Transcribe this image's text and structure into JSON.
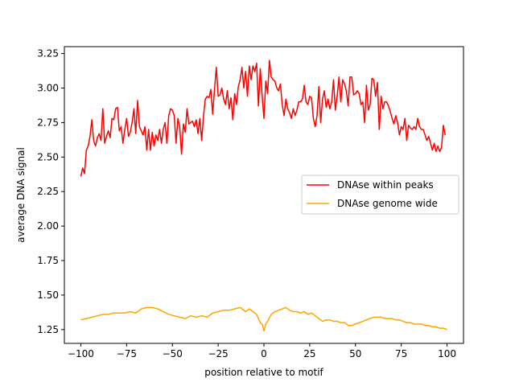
{
  "chart_data": {
    "type": "line",
    "title": "",
    "xlabel": "position relative to motif",
    "ylabel": "average DNA signal",
    "xlim": [
      -109,
      109
    ],
    "ylim": [
      1.15,
      3.3
    ],
    "xticks": [
      -100,
      -75,
      -50,
      -25,
      0,
      25,
      50,
      75,
      100
    ],
    "yticks": [
      1.25,
      1.5,
      1.75,
      2.0,
      2.25,
      2.5,
      2.75,
      3.0,
      3.25
    ],
    "xtick_labels": [
      "−100",
      "−75",
      "−50",
      "−25",
      "0",
      "25",
      "50",
      "75",
      "100"
    ],
    "ytick_labels": [
      "1.25",
      "1.50",
      "1.75",
      "2.00",
      "2.25",
      "2.50",
      "2.75",
      "3.00",
      "3.25"
    ],
    "grid": false,
    "legend_position": "center-right",
    "series": [
      {
        "name": "DNAse within peaks",
        "color": "#ff0000",
        "points": [
          [
            -100,
            2.36
          ],
          [
            -99,
            2.42
          ],
          [
            -98,
            2.38
          ],
          [
            -97,
            2.55
          ],
          [
            -96,
            2.58
          ],
          [
            -95,
            2.65
          ],
          [
            -94,
            2.77
          ],
          [
            -93,
            2.62
          ],
          [
            -92,
            2.58
          ],
          [
            -91,
            2.64
          ],
          [
            -90,
            2.67
          ],
          [
            -89,
            2.62
          ],
          [
            -88,
            2.85
          ],
          [
            -87,
            2.6
          ],
          [
            -86,
            2.65
          ],
          [
            -85,
            2.69
          ],
          [
            -84,
            2.64
          ],
          [
            -83,
            2.78
          ],
          [
            -82,
            2.77
          ],
          [
            -81,
            2.85
          ],
          [
            -80,
            2.86
          ],
          [
            -79,
            2.69
          ],
          [
            -78,
            2.72
          ],
          [
            -77,
            2.6
          ],
          [
            -76,
            2.7
          ],
          [
            -75,
            2.78
          ],
          [
            -74,
            2.65
          ],
          [
            -73,
            2.68
          ],
          [
            -72,
            2.75
          ],
          [
            -71,
            2.85
          ],
          [
            -70,
            2.67
          ],
          [
            -69,
            2.91
          ],
          [
            -68,
            2.72
          ],
          [
            -67,
            2.69
          ],
          [
            -66,
            2.66
          ],
          [
            -65,
            2.72
          ],
          [
            -64,
            2.55
          ],
          [
            -63,
            2.7
          ],
          [
            -62,
            2.55
          ],
          [
            -61,
            2.68
          ],
          [
            -60,
            2.58
          ],
          [
            -59,
            2.66
          ],
          [
            -58,
            2.62
          ],
          [
            -57,
            2.7
          ],
          [
            -56,
            2.6
          ],
          [
            -55,
            2.7
          ],
          [
            -54,
            2.75
          ],
          [
            -53,
            2.6
          ],
          [
            -52,
            2.8
          ],
          [
            -51,
            2.85
          ],
          [
            -50,
            2.84
          ],
          [
            -49,
            2.8
          ],
          [
            -48,
            2.6
          ],
          [
            -47,
            2.78
          ],
          [
            -46,
            2.72
          ],
          [
            -45,
            2.52
          ],
          [
            -44,
            2.74
          ],
          [
            -43,
            2.68
          ],
          [
            -42,
            2.85
          ],
          [
            -41,
            2.74
          ],
          [
            -40,
            2.75
          ],
          [
            -39,
            2.76
          ],
          [
            -38,
            2.72
          ],
          [
            -37,
            2.77
          ],
          [
            -36,
            2.67
          ],
          [
            -35,
            2.78
          ],
          [
            -34,
            2.62
          ],
          [
            -33,
            2.8
          ],
          [
            -32,
            2.92
          ],
          [
            -31,
            2.94
          ],
          [
            -30,
            2.93
          ],
          [
            -29,
            2.99
          ],
          [
            -28,
            2.81
          ],
          [
            -27,
            2.99
          ],
          [
            -26,
            3.15
          ],
          [
            -25,
            2.94
          ],
          [
            -24,
            2.95
          ],
          [
            -23,
            3.0
          ],
          [
            -22,
            2.92
          ],
          [
            -21,
            2.88
          ],
          [
            -20,
            2.98
          ],
          [
            -19,
            2.85
          ],
          [
            -18,
            2.93
          ],
          [
            -17,
            2.77
          ],
          [
            -16,
            2.96
          ],
          [
            -15,
            2.88
          ],
          [
            -14,
            3.01
          ],
          [
            -13,
            3.06
          ],
          [
            -12,
            3.15
          ],
          [
            -11,
            3.0
          ],
          [
            -10,
            3.12
          ],
          [
            -9,
            2.94
          ],
          [
            -8,
            3.16
          ],
          [
            -7,
            3.06
          ],
          [
            -6,
            3.16
          ],
          [
            -5,
            3.12
          ],
          [
            -4,
            3.18
          ],
          [
            -3,
            2.87
          ],
          [
            -2,
            3.14
          ],
          [
            -1,
            2.95
          ],
          [
            0,
            2.78
          ],
          [
            1,
            3.05
          ],
          [
            2,
            2.96
          ],
          [
            3,
            3.2
          ],
          [
            4,
            3.08
          ],
          [
            5,
            3.06
          ],
          [
            6,
            3.05
          ],
          [
            7,
            3.0
          ],
          [
            8,
            2.98
          ],
          [
            9,
            3.03
          ],
          [
            10,
            2.88
          ],
          [
            11,
            2.8
          ],
          [
            12,
            2.92
          ],
          [
            13,
            2.85
          ],
          [
            14,
            2.82
          ],
          [
            15,
            2.78
          ],
          [
            16,
            2.85
          ],
          [
            17,
            2.8
          ],
          [
            18,
            2.84
          ],
          [
            19,
            2.9
          ],
          [
            20,
            2.9
          ],
          [
            21,
            2.92
          ],
          [
            22,
            3.02
          ],
          [
            23,
            2.9
          ],
          [
            24,
            2.88
          ],
          [
            25,
            2.94
          ],
          [
            26,
            2.93
          ],
          [
            27,
            2.78
          ],
          [
            28,
            2.72
          ],
          [
            29,
            2.8
          ],
          [
            30,
            3.01
          ],
          [
            31,
            2.75
          ],
          [
            32,
            2.92
          ],
          [
            33,
            2.98
          ],
          [
            34,
            2.86
          ],
          [
            35,
            2.92
          ],
          [
            36,
            2.85
          ],
          [
            37,
            2.9
          ],
          [
            38,
            3.06
          ],
          [
            39,
            2.84
          ],
          [
            40,
            2.94
          ],
          [
            41,
            3.08
          ],
          [
            42,
            2.9
          ],
          [
            43,
            3.06
          ],
          [
            44,
            3.03
          ],
          [
            45,
            2.98
          ],
          [
            46,
            2.87
          ],
          [
            47,
            3.08
          ],
          [
            48,
            3.08
          ],
          [
            49,
            2.95
          ],
          [
            50,
            2.96
          ],
          [
            51,
            2.98
          ],
          [
            52,
            2.96
          ],
          [
            53,
            2.88
          ],
          [
            54,
            2.9
          ],
          [
            55,
            2.75
          ],
          [
            56,
            3.02
          ],
          [
            57,
            2.84
          ],
          [
            58,
            2.88
          ],
          [
            59,
            3.07
          ],
          [
            60,
            3.06
          ],
          [
            61,
            2.94
          ],
          [
            62,
            3.04
          ],
          [
            63,
            2.7
          ],
          [
            64,
            2.94
          ],
          [
            65,
            2.85
          ],
          [
            66,
            2.9
          ],
          [
            67,
            2.9
          ],
          [
            68,
            2.87
          ],
          [
            69,
            2.83
          ],
          [
            70,
            2.78
          ],
          [
            71,
            2.74
          ],
          [
            72,
            2.8
          ],
          [
            73,
            2.75
          ],
          [
            74,
            2.66
          ],
          [
            75,
            2.72
          ],
          [
            76,
            2.7
          ],
          [
            77,
            2.78
          ],
          [
            78,
            2.62
          ],
          [
            79,
            2.73
          ],
          [
            80,
            2.71
          ],
          [
            81,
            2.7
          ],
          [
            82,
            2.72
          ],
          [
            83,
            2.7
          ],
          [
            84,
            2.78
          ],
          [
            85,
            2.72
          ],
          [
            86,
            2.7
          ],
          [
            87,
            2.7
          ],
          [
            88,
            2.66
          ],
          [
            89,
            2.62
          ],
          [
            90,
            2.65
          ],
          [
            91,
            2.6
          ],
          [
            92,
            2.55
          ],
          [
            93,
            2.6
          ],
          [
            94,
            2.54
          ],
          [
            95,
            2.58
          ],
          [
            96,
            2.54
          ],
          [
            97,
            2.57
          ],
          [
            98,
            2.73
          ],
          [
            99,
            2.66
          ]
        ]
      },
      {
        "name": "DNAse genome wide",
        "color": "#ffa500",
        "points": [
          [
            -100,
            1.32
          ],
          [
            -97,
            1.33
          ],
          [
            -94,
            1.34
          ],
          [
            -91,
            1.35
          ],
          [
            -88,
            1.36
          ],
          [
            -85,
            1.36
          ],
          [
            -82,
            1.37
          ],
          [
            -79,
            1.37
          ],
          [
            -76,
            1.37
          ],
          [
            -73,
            1.38
          ],
          [
            -70,
            1.37
          ],
          [
            -67,
            1.4
          ],
          [
            -64,
            1.41
          ],
          [
            -61,
            1.41
          ],
          [
            -58,
            1.4
          ],
          [
            -55,
            1.38
          ],
          [
            -52,
            1.36
          ],
          [
            -49,
            1.35
          ],
          [
            -46,
            1.34
          ],
          [
            -43,
            1.33
          ],
          [
            -40,
            1.35
          ],
          [
            -37,
            1.34
          ],
          [
            -34,
            1.35
          ],
          [
            -31,
            1.34
          ],
          [
            -28,
            1.37
          ],
          [
            -25,
            1.38
          ],
          [
            -22,
            1.39
          ],
          [
            -19,
            1.39
          ],
          [
            -16,
            1.4
          ],
          [
            -13,
            1.41
          ],
          [
            -10,
            1.38
          ],
          [
            -8,
            1.4
          ],
          [
            -6,
            1.38
          ],
          [
            -4,
            1.36
          ],
          [
            -3,
            1.33
          ],
          [
            -2,
            1.3
          ],
          [
            -1,
            1.29
          ],
          [
            0,
            1.24
          ],
          [
            1,
            1.29
          ],
          [
            2,
            1.31
          ],
          [
            4,
            1.36
          ],
          [
            6,
            1.38
          ],
          [
            8,
            1.39
          ],
          [
            10,
            1.4
          ],
          [
            12,
            1.41
          ],
          [
            14,
            1.39
          ],
          [
            16,
            1.38
          ],
          [
            18,
            1.38
          ],
          [
            20,
            1.37
          ],
          [
            22,
            1.38
          ],
          [
            24,
            1.36
          ],
          [
            26,
            1.37
          ],
          [
            28,
            1.35
          ],
          [
            30,
            1.33
          ],
          [
            32,
            1.31
          ],
          [
            34,
            1.32
          ],
          [
            36,
            1.32
          ],
          [
            38,
            1.31
          ],
          [
            40,
            1.31
          ],
          [
            42,
            1.3
          ],
          [
            44,
            1.3
          ],
          [
            46,
            1.28
          ],
          [
            48,
            1.28
          ],
          [
            50,
            1.29
          ],
          [
            52,
            1.3
          ],
          [
            54,
            1.31
          ],
          [
            56,
            1.32
          ],
          [
            58,
            1.33
          ],
          [
            60,
            1.34
          ],
          [
            62,
            1.34
          ],
          [
            64,
            1.34
          ],
          [
            66,
            1.33
          ],
          [
            68,
            1.33
          ],
          [
            70,
            1.33
          ],
          [
            72,
            1.32
          ],
          [
            74,
            1.32
          ],
          [
            76,
            1.31
          ],
          [
            78,
            1.3
          ],
          [
            80,
            1.3
          ],
          [
            82,
            1.29
          ],
          [
            84,
            1.29
          ],
          [
            86,
            1.29
          ],
          [
            88,
            1.28
          ],
          [
            90,
            1.28
          ],
          [
            92,
            1.27
          ],
          [
            94,
            1.27
          ],
          [
            96,
            1.26
          ],
          [
            98,
            1.26
          ],
          [
            100,
            1.25
          ]
        ]
      }
    ]
  }
}
